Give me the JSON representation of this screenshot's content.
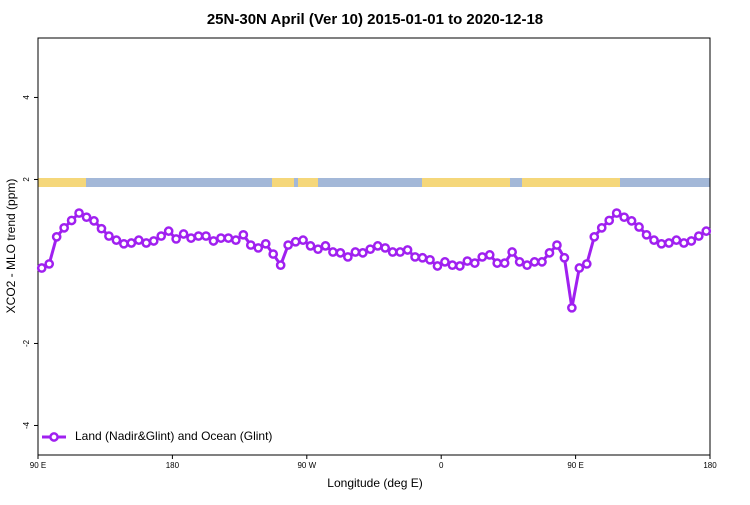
{
  "chart_data": {
    "type": "line",
    "title": "25N-30N April (Ver 10)   2015-01-01 to 2020-12-18",
    "x_label": "Longitude (deg E)",
    "y_label": "XCO2 - MLO trend (ppm)",
    "xlim": [
      90,
      540
    ],
    "xticks": [
      {
        "value": 90,
        "label": "90 E"
      },
      {
        "value": 180,
        "label": "180"
      },
      {
        "value": 270,
        "label": "90 W"
      },
      {
        "value": 360,
        "label": "0"
      },
      {
        "value": 450,
        "label": "90 E"
      },
      {
        "value": 540,
        "label": "180"
      }
    ],
    "ylim": [
      -4.72,
      5.45
    ],
    "yticks": [
      -4,
      -2,
      2,
      4
    ],
    "legend": "bottom-left",
    "x": [
      92.5,
      97.5,
      102.5,
      107.5,
      112.5,
      117.5,
      122.5,
      127.5,
      132.5,
      137.5,
      142.5,
      147.5,
      152.5,
      157.5,
      162.5,
      167.5,
      172.5,
      177.5,
      182.5,
      187.5,
      192.5,
      197.5,
      202.5,
      207.5,
      212.5,
      217.5,
      222.5,
      227.5,
      232.5,
      237.5,
      242.5,
      247.5,
      252.5,
      257.5,
      262.5,
      267.5,
      272.5,
      277.5,
      282.5,
      287.5,
      292.5,
      297.5,
      302.5,
      307.5,
      312.5,
      317.5,
      322.5,
      327.5,
      332.5,
      337.5,
      342.5,
      347.5,
      352.5,
      357.5,
      362.5,
      367.5,
      372.5,
      377.5,
      382.5,
      387.5,
      392.5,
      397.5,
      402.5,
      407.5,
      412.5,
      417.5,
      422.5,
      427.5,
      432.5,
      437.5,
      442.5,
      447.5,
      452.5,
      457.5,
      462.5,
      467.5,
      472.5,
      477.5,
      482.5,
      487.5,
      492.5,
      497.5,
      502.5,
      507.5,
      512.5,
      517.5,
      522.5,
      527.5,
      532.5,
      537.5
    ],
    "series": [
      {
        "name": "Land (Nadir&Glint) and Ocean (Glint)",
        "color": "#a020f0",
        "values": [
          -0.16,
          -0.06,
          0.6,
          0.82,
          1.0,
          1.18,
          1.08,
          0.99,
          0.8,
          0.62,
          0.52,
          0.43,
          0.45,
          0.52,
          0.45,
          0.5,
          0.62,
          0.74,
          0.55,
          0.67,
          0.57,
          0.62,
          0.62,
          0.5,
          0.57,
          0.57,
          0.52,
          0.65,
          0.4,
          0.33,
          0.43,
          0.18,
          -0.09,
          0.4,
          0.48,
          0.52,
          0.38,
          0.3,
          0.38,
          0.23,
          0.21,
          0.11,
          0.23,
          0.21,
          0.3,
          0.38,
          0.33,
          0.23,
          0.23,
          0.28,
          0.11,
          0.09,
          0.04,
          -0.11,
          -0.01,
          -0.09,
          -0.11,
          0.01,
          -0.04,
          0.11,
          0.16,
          -0.04,
          -0.04,
          0.23,
          -0.01,
          -0.09,
          -0.01,
          -0.01,
          0.21,
          0.4,
          0.09,
          -1.13,
          -0.16,
          -0.06,
          0.6,
          0.82,
          1.0,
          1.18,
          1.08,
          0.99,
          0.84,
          0.65,
          0.52,
          0.43,
          0.45,
          0.52,
          0.45,
          0.5,
          0.62,
          0.74
        ]
      }
    ]
  }
}
